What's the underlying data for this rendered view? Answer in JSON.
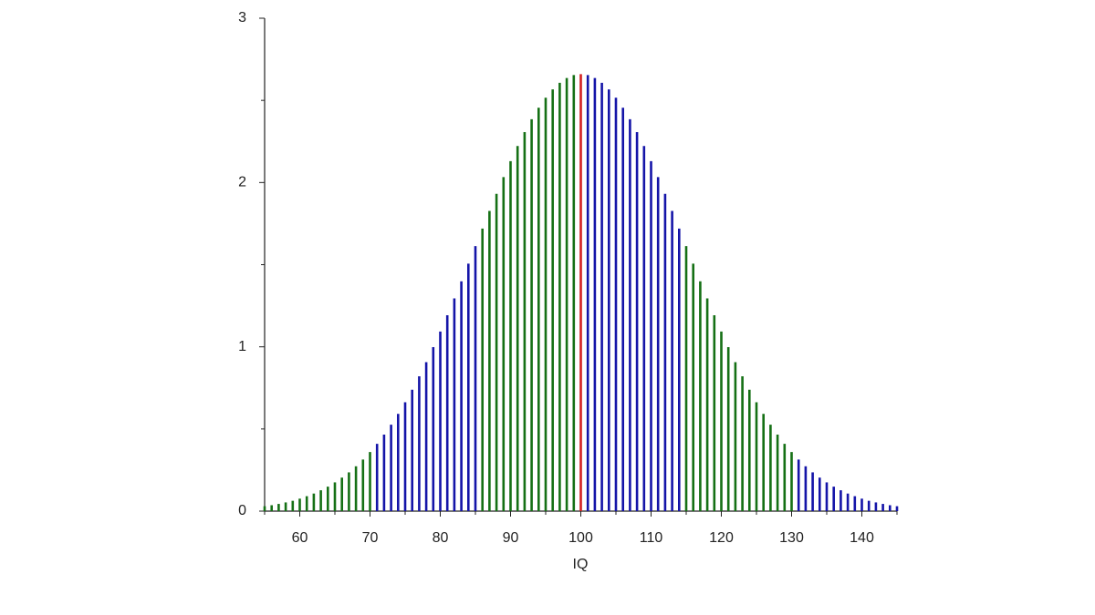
{
  "chart_data": {
    "type": "stem",
    "xlabel": "IQ",
    "x": [
      55,
      56,
      57,
      58,
      59,
      60,
      61,
      62,
      63,
      64,
      65,
      66,
      67,
      68,
      69,
      70,
      71,
      72,
      73,
      74,
      75,
      76,
      77,
      78,
      79,
      80,
      81,
      82,
      83,
      84,
      85,
      86,
      87,
      88,
      89,
      90,
      91,
      92,
      93,
      94,
      95,
      96,
      97,
      98,
      99,
      100,
      101,
      102,
      103,
      104,
      105,
      106,
      107,
      108,
      109,
      110,
      111,
      112,
      113,
      114,
      115,
      116,
      117,
      118,
      119,
      120,
      121,
      122,
      123,
      124,
      125,
      126,
      127,
      128,
      129,
      130,
      131,
      132,
      133,
      134,
      135,
      136,
      137,
      138,
      139,
      140,
      141,
      142,
      143,
      144,
      145
    ],
    "values": [
      0.03,
      0.036,
      0.044,
      0.053,
      0.063,
      0.076,
      0.091,
      0.107,
      0.127,
      0.149,
      0.175,
      0.204,
      0.236,
      0.273,
      0.314,
      0.36,
      0.41,
      0.466,
      0.526,
      0.592,
      0.663,
      0.739,
      0.821,
      0.907,
      0.998,
      1.093,
      1.192,
      1.295,
      1.399,
      1.506,
      1.613,
      1.72,
      1.827,
      1.931,
      2.033,
      2.13,
      2.222,
      2.307,
      2.385,
      2.455,
      2.516,
      2.567,
      2.607,
      2.636,
      2.654,
      2.66,
      2.654,
      2.636,
      2.607,
      2.567,
      2.516,
      2.455,
      2.385,
      2.307,
      2.222,
      2.13,
      2.033,
      1.931,
      1.827,
      1.72,
      1.613,
      1.506,
      1.399,
      1.295,
      1.192,
      1.093,
      0.998,
      0.907,
      0.821,
      0.739,
      0.663,
      0.592,
      0.526,
      0.466,
      0.41,
      0.36,
      0.314,
      0.273,
      0.236,
      0.204,
      0.175,
      0.149,
      0.127,
      0.107,
      0.091,
      0.076,
      0.063,
      0.053,
      0.044,
      0.036,
      0.03
    ],
    "colors": [
      "#157015",
      "#157015",
      "#157015",
      "#157015",
      "#157015",
      "#157015",
      "#157015",
      "#157015",
      "#157015",
      "#157015",
      "#157015",
      "#157015",
      "#157015",
      "#157015",
      "#157015",
      "#157015",
      "#1414a8",
      "#1414a8",
      "#1414a8",
      "#1414a8",
      "#1414a8",
      "#1414a8",
      "#1414a8",
      "#1414a8",
      "#1414a8",
      "#1414a8",
      "#1414a8",
      "#1414a8",
      "#1414a8",
      "#1414a8",
      "#1414a8",
      "#157015",
      "#157015",
      "#157015",
      "#157015",
      "#157015",
      "#157015",
      "#157015",
      "#157015",
      "#157015",
      "#157015",
      "#157015",
      "#157015",
      "#157015",
      "#157015",
      "#d42020",
      "#1414a8",
      "#1414a8",
      "#1414a8",
      "#1414a8",
      "#1414a8",
      "#1414a8",
      "#1414a8",
      "#1414a8",
      "#1414a8",
      "#1414a8",
      "#1414a8",
      "#1414a8",
      "#1414a8",
      "#1414a8",
      "#157015",
      "#157015",
      "#157015",
      "#157015",
      "#157015",
      "#157015",
      "#157015",
      "#157015",
      "#157015",
      "#157015",
      "#157015",
      "#157015",
      "#157015",
      "#157015",
      "#157015",
      "#157015",
      "#1414a8",
      "#1414a8",
      "#1414a8",
      "#1414a8",
      "#1414a8",
      "#1414a8",
      "#1414a8",
      "#1414a8",
      "#1414a8",
      "#1414a8",
      "#1414a8",
      "#1414a8",
      "#1414a8",
      "#1414a8",
      "#1414a8"
    ],
    "xlim": [
      55,
      145
    ],
    "xticks": [
      60,
      70,
      80,
      90,
      100,
      110,
      120,
      130,
      140
    ],
    "xminorticks": [
      55,
      65,
      75,
      85,
      95,
      105,
      115,
      125,
      135,
      145
    ],
    "ylim": [
      0,
      3
    ],
    "yticks": [
      0,
      1,
      2,
      3
    ],
    "yminorticks": [
      0.5,
      1.5,
      2.5
    ]
  }
}
